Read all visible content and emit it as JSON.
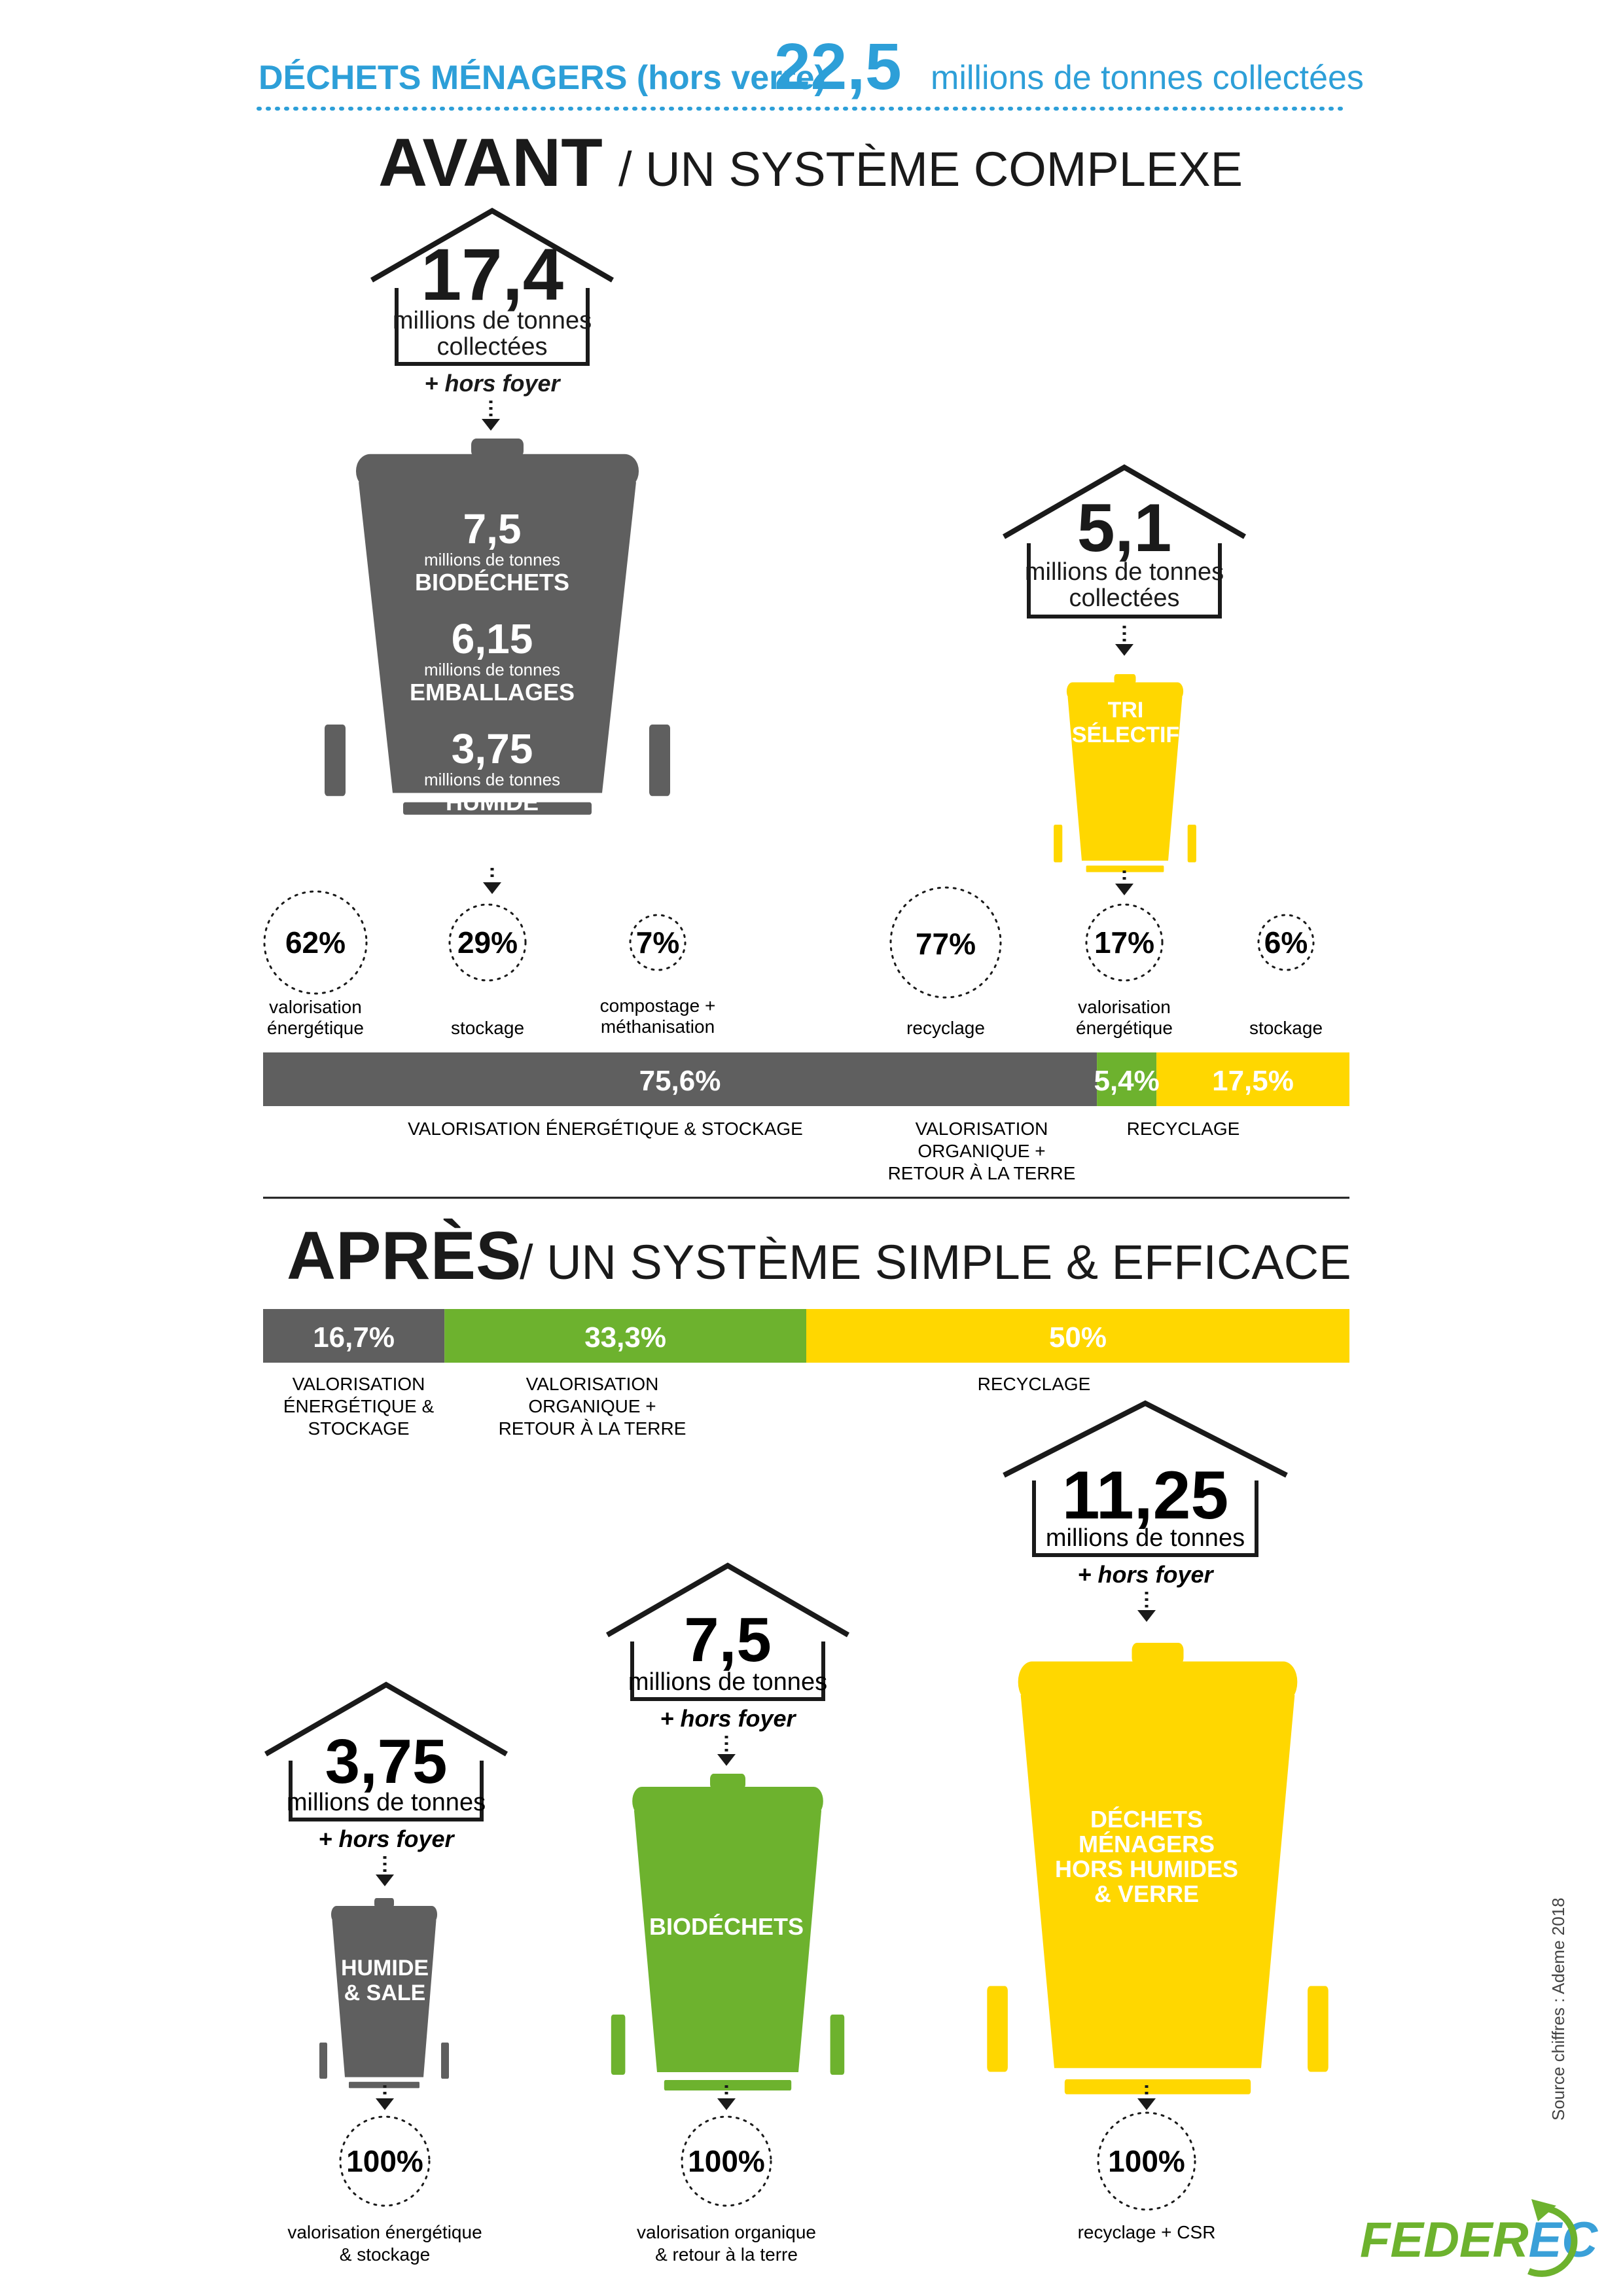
{
  "header": {
    "title_prefix": "DÉCHETS MÉNAGERS (hors verre)",
    "title_value": "22,5",
    "title_suffix": "millions de tonnes collectées"
  },
  "avant": {
    "heading": "AVANT",
    "subheading": "/ UN SYSTÈME COMPLEXE",
    "house_main": {
      "value": "17,4",
      "unit_line1": "millions de tonnes",
      "unit_line2": "collectées",
      "note": "+ hors foyer"
    },
    "grey_bin": {
      "items": [
        {
          "value": "7,5",
          "unit": "millions de tonnes",
          "label": "BIODÉCHETS"
        },
        {
          "value": "6,15",
          "unit": "millions de tonnes",
          "label": "EMBALLAGES"
        },
        {
          "value": "3,75",
          "unit": "millions de tonnes",
          "label": "HUMIDE"
        }
      ]
    },
    "house_selective": {
      "value": "5,1",
      "unit_line1": "millions de tonnes",
      "unit_line2": "collectées"
    },
    "yellow_bin": {
      "line1": "TRI",
      "line2": "« SÉLECTIF »"
    },
    "circles": [
      {
        "value": "62%",
        "label1": "valorisation",
        "label2": "énergétique"
      },
      {
        "value": "29%",
        "label1": "stockage",
        "label2": ""
      },
      {
        "value": "7%",
        "label1": "compostage +",
        "label2": "méthanisation"
      },
      {
        "value": "77%",
        "label1": "recyclage",
        "label2": ""
      },
      {
        "value": "17%",
        "label1": "valorisation",
        "label2": "énergétique"
      },
      {
        "value": "6%",
        "label1": "stockage",
        "label2": ""
      }
    ],
    "bar": [
      {
        "value": "75,6%",
        "share": 75.6,
        "color": "#5f5f5f",
        "label1": "VALORISATION ÉNERGÉTIQUE & STOCKAGE",
        "label2": "",
        "label3": ""
      },
      {
        "value": "5,4%",
        "share": 5.4,
        "color": "#6db22e",
        "label1": "VALORISATION",
        "label2": "ORGANIQUE +",
        "label3": "RETOUR À LA TERRE"
      },
      {
        "value": "17,5%",
        "share": 17.5,
        "color": "#ffd700",
        "label1": "RECYCLAGE",
        "label2": "",
        "label3": ""
      }
    ]
  },
  "apres": {
    "heading": "APRÈS",
    "subheading": "/ UN SYSTÈME SIMPLE & EFFICACE",
    "bar": [
      {
        "value": "16,7%",
        "share": 16.7,
        "color": "#5f5f5f",
        "label1": "VALORISATION",
        "label2": "ÉNERGÉTIQUE &",
        "label3": "STOCKAGE"
      },
      {
        "value": "33,3%",
        "share": 33.3,
        "color": "#6db22e",
        "label1": "VALORISATION",
        "label2": "ORGANIQUE +",
        "label3": "RETOUR À LA TERRE"
      },
      {
        "value": "50%",
        "share": 50,
        "color": "#ffd700",
        "label1": "RECYCLAGE",
        "label2": "",
        "label3": ""
      }
    ],
    "columns": [
      {
        "house_value": "3,75",
        "house_unit": "millions de tonnes",
        "house_note": "+ hors foyer",
        "bin_line1": "HUMIDE",
        "bin_line2": "& SALE",
        "bin_line3": "",
        "bin_line4": "",
        "bin_color": "#5f5f5f",
        "result_value": "100%",
        "result_label1": "valorisation énergétique",
        "result_label2": "& stockage"
      },
      {
        "house_value": "7,5",
        "house_unit": "millions de tonnes",
        "house_note": "+ hors foyer",
        "bin_line1": "BIODÉCHETS",
        "bin_line2": "",
        "bin_line3": "",
        "bin_line4": "",
        "bin_color": "#6db22e",
        "result_value": "100%",
        "result_label1": "valorisation organique",
        "result_label2": "& retour à la terre"
      },
      {
        "house_value": "11,25",
        "house_unit": "millions de tonnes",
        "house_note": "+ hors foyer",
        "bin_line1": "DÉCHETS",
        "bin_line2": "MÉNAGERS",
        "bin_line3": "HORS HUMIDES",
        "bin_line4": "& VERRE",
        "bin_color": "#ffd700",
        "result_value": "100%",
        "result_label1": "recyclage + CSR",
        "result_label2": ""
      }
    ]
  },
  "source": "Source chiffres : Ademe 2018",
  "logo": {
    "text_part1": "FEDER",
    "text_part2": "EC",
    "color_part1": "#6db22e",
    "color_part2": "#3aa0d8"
  },
  "colors": {
    "grey": "#5f5f5f",
    "green": "#6db22e",
    "yellow": "#ffd700",
    "blue": "#2d9fd8",
    "dark": "#1a1a1a"
  }
}
